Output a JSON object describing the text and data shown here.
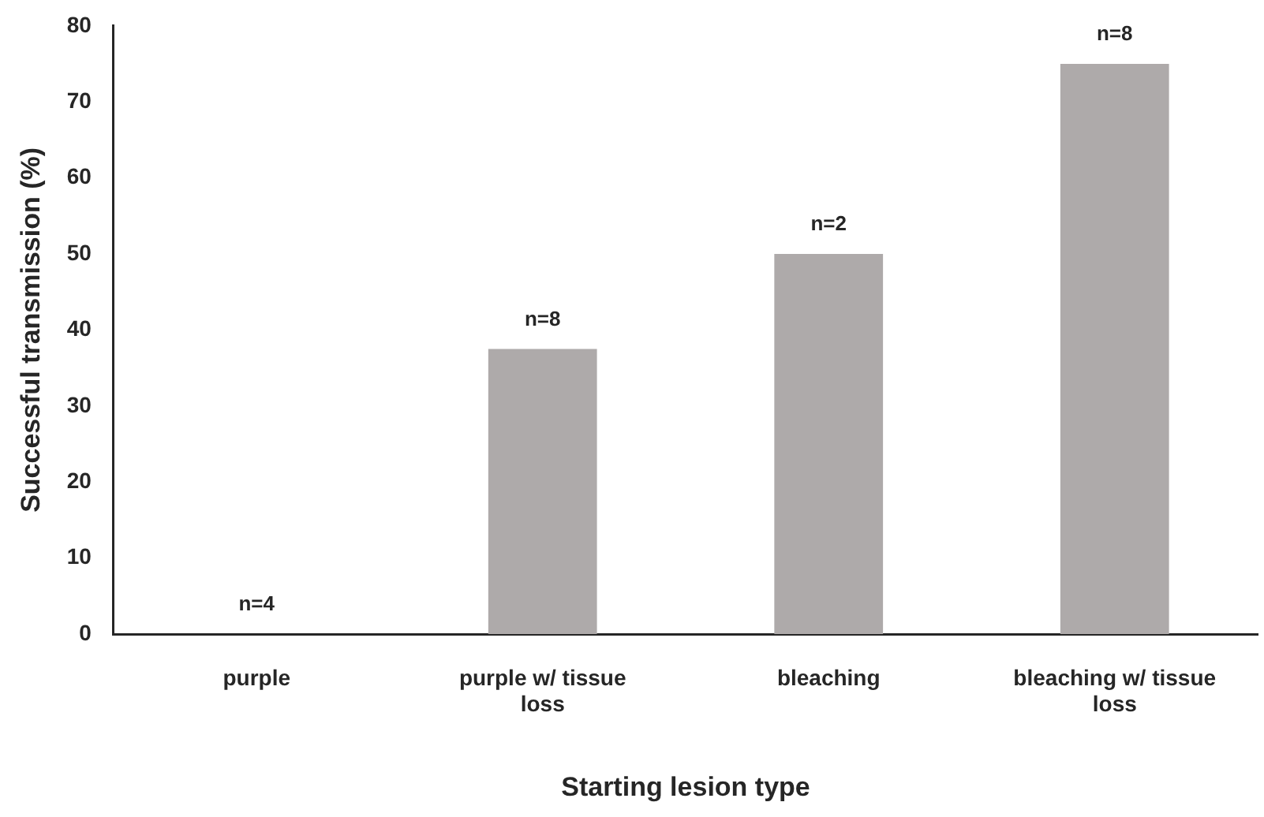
{
  "chart_data": {
    "type": "bar",
    "xlabel": "Starting lesion type",
    "ylabel": "Successful transmission (%)",
    "categories": [
      "purple",
      "purple w/ tissue loss",
      "bleaching",
      "bleaching w/ tissue loss"
    ],
    "values": [
      0,
      37.5,
      50,
      75
    ],
    "color": "#aeaaaa",
    "annotations": [
      {
        "text": "n=4",
        "x": "purple",
        "y": 0
      },
      {
        "text": "n=8",
        "x": "purple w/ tissue loss",
        "y": 37.5
      },
      {
        "text": "n=2",
        "x": "bleaching",
        "y": 50
      },
      {
        "text": "n=8",
        "x": "bleaching w/ tissue loss",
        "y": 75
      }
    ],
    "ylim": [
      0,
      80
    ],
    "yticks": [
      0,
      10,
      20,
      30,
      40,
      50,
      60,
      70,
      80
    ],
    "grid": false,
    "legend": false
  }
}
